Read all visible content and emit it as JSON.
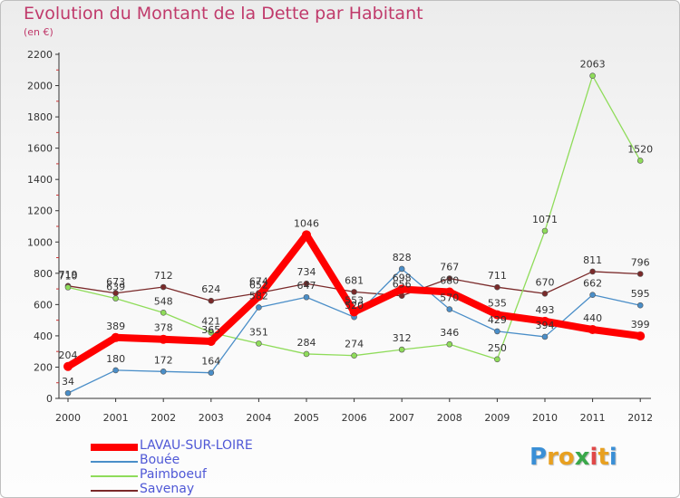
{
  "header": {
    "title": "Evolution du Montant de la Dette par Habitant",
    "subtitle": "(en €)"
  },
  "logo": {
    "text": "Proxiti",
    "colors": [
      "#3a8fd6",
      "#e8a020",
      "#e8a020",
      "#3aa84a",
      "#e04848",
      "#e8a020",
      "#3a8fd6"
    ]
  },
  "chart_data": {
    "type": "line",
    "title": "Evolution du Montant de la Dette par Habitant",
    "ylabel": "(en €)",
    "x": [
      "2000",
      "2001",
      "2002",
      "2003",
      "2004",
      "2005",
      "2006",
      "2007",
      "2008",
      "2009",
      "2010",
      "2011",
      "2012"
    ],
    "ylim": [
      0,
      2200
    ],
    "yticks": [
      0,
      200,
      400,
      600,
      800,
      1000,
      1200,
      1400,
      1600,
      1800,
      2000,
      2200
    ],
    "grid": false,
    "legend_position": "bottom-left",
    "series": [
      {
        "name": "LAVAU-SUR-LOIRE",
        "color": "#ff0000",
        "values": [
          204,
          389,
          378,
          365,
          652,
          1046,
          553,
          698,
          680,
          535,
          493,
          440,
          399
        ],
        "labels": [
          "204",
          "389",
          "378",
          "365",
          "652",
          "1046",
          "553",
          "698",
          "680",
          "535",
          "493",
          "440",
          "399"
        ]
      },
      {
        "name": "Bouée",
        "color": "#4a8ec8",
        "values": [
          34,
          180,
          172,
          164,
          582,
          647,
          520,
          828,
          570,
          429,
          394,
          662,
          595
        ],
        "labels": [
          "34",
          "180",
          "172",
          "164",
          "582",
          "647",
          "520",
          "828",
          "570",
          "429",
          "394",
          "662",
          "595"
        ]
      },
      {
        "name": "Paimboeuf",
        "color": "#8fdc5a",
        "values": [
          710,
          639,
          548,
          421,
          351,
          284,
          274,
          312,
          346,
          250,
          1071,
          2063,
          1520
        ],
        "labels": [
          "710",
          "639",
          "548",
          "421",
          "351",
          "284",
          "274",
          "312",
          "346",
          "250",
          "1071",
          "2063",
          "1520"
        ]
      },
      {
        "name": "Savenay",
        "color": "#7a2a2a",
        "values": [
          719,
          673,
          712,
          624,
          674,
          734,
          681,
          656,
          767,
          711,
          670,
          811,
          796
        ],
        "labels": [
          "719",
          "673",
          "712",
          "624",
          "674",
          "734",
          "681",
          "656",
          "767",
          "711",
          "670",
          "811",
          "796"
        ]
      }
    ]
  }
}
